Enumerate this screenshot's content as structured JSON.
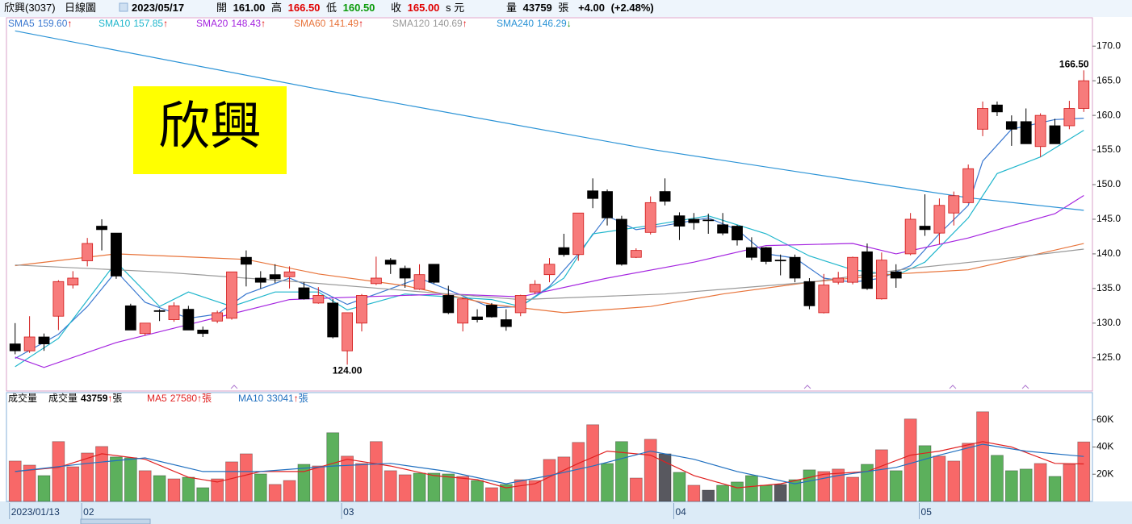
{
  "header": {
    "name": "欣興(3037)",
    "chart_kind": "日線圖",
    "date": "2023/05/17",
    "open_label": "開",
    "open": "161.00",
    "high_label": "高",
    "high": "166.50",
    "low_label": "低",
    "low": "160.50",
    "close_label": "收",
    "close": "165.00",
    "currency": "s 元",
    "volume_label": "量",
    "volume": "43759",
    "volume_unit": "張",
    "change": "+4.00",
    "change_pct": "(+2.48%)"
  },
  "chart_data": [
    {
      "type": "candlestick",
      "annotation": "欣興",
      "open": [
        127.0,
        126.0,
        128.0,
        131.0,
        135.5,
        139.0,
        144.0,
        143.0,
        132.5,
        128.5,
        131.8,
        130.5,
        132.0,
        129.0,
        130.3,
        130.7,
        139.5,
        136.5,
        137.0,
        136.7,
        135.1,
        132.9,
        132.9,
        126.0,
        130.0,
        135.7,
        139.1,
        137.9,
        134.9,
        138.5,
        134.0,
        130.0,
        130.9,
        132.6,
        130.5,
        131.5,
        134.5,
        137.0,
        140.9,
        139.9,
        149.1,
        149.0,
        145.0,
        139.5,
        143.1,
        149.0,
        145.5,
        145.0,
        144.9,
        144.2,
        144.0,
        140.9,
        140.9,
        139.1,
        139.5,
        136.0,
        131.5,
        135.9,
        135.9,
        140.3,
        133.5,
        137.4,
        140.0,
        144.0,
        143.0,
        145.9,
        147.4,
        158.0,
        161.5,
        159.1,
        159.1,
        155.5,
        158.5,
        158.5,
        161.0
      ],
      "high": [
        130.0,
        131.0,
        128.5,
        136.2,
        137.5,
        142.3,
        145.0,
        143.0,
        132.8,
        130.0,
        132.0,
        133.0,
        132.5,
        129.5,
        131.8,
        137.4,
        140.5,
        137.5,
        138.5,
        138.2,
        135.9,
        135.2,
        133.5,
        131.5,
        134.2,
        139.6,
        139.4,
        138.3,
        138.5,
        138.5,
        135.4,
        133.7,
        132.0,
        132.9,
        132.0,
        134.1,
        136.2,
        139.4,
        142.9,
        145.9,
        150.9,
        149.3,
        145.5,
        140.8,
        148.3,
        150.9,
        146.0,
        145.9,
        145.8,
        145.9,
        144.2,
        142.4,
        141.0,
        139.9,
        139.9,
        136.5,
        137.1,
        137.4,
        139.6,
        141.5,
        140.2,
        138.5,
        145.9,
        148.6,
        148.0,
        149.0,
        152.9,
        162.0,
        162.0,
        160.0,
        161.0,
        160.3,
        159.5,
        162.1,
        166.5
      ],
      "low": [
        125.5,
        125.7,
        126.0,
        129.0,
        135.0,
        138.2,
        140.5,
        136.4,
        129.0,
        128.2,
        130.3,
        130.2,
        129.0,
        128.0,
        130.0,
        130.5,
        135.3,
        135.0,
        135.8,
        135.0,
        133.4,
        132.8,
        127.8,
        124.0,
        128.8,
        135.5,
        137.1,
        135.1,
        134.8,
        135.7,
        131.3,
        128.8,
        130.1,
        130.8,
        128.9,
        131.0,
        134.2,
        135.9,
        139.6,
        139.0,
        146.6,
        144.1,
        138.3,
        139.4,
        142.8,
        147.0,
        142.0,
        143.5,
        142.9,
        142.7,
        141.2,
        139.1,
        138.5,
        136.9,
        135.9,
        132.0,
        131.4,
        135.6,
        135.6,
        134.8,
        133.4,
        135.1,
        139.8,
        142.6,
        141.4,
        144.1,
        147.3,
        157.0,
        159.9,
        155.6,
        155.9,
        154.0,
        155.9,
        158.0,
        160.5
      ],
      "close": [
        126.0,
        128.0,
        127.0,
        136.0,
        136.5,
        141.5,
        143.5,
        136.8,
        129.0,
        130.0,
        131.7,
        132.5,
        129.0,
        128.5,
        131.5,
        137.4,
        138.5,
        135.9,
        136.4,
        137.4,
        133.5,
        134.0,
        128.0,
        131.5,
        134.0,
        136.5,
        138.5,
        136.5,
        137.0,
        135.9,
        131.5,
        133.5,
        130.5,
        130.9,
        129.5,
        134.0,
        135.6,
        138.5,
        139.9,
        145.9,
        148.0,
        145.2,
        138.5,
        140.5,
        147.4,
        147.6,
        144.0,
        144.5,
        144.8,
        143.0,
        142.0,
        139.5,
        138.9,
        139.0,
        136.5,
        132.5,
        135.5,
        136.5,
        139.5,
        135.0,
        139.1,
        136.5,
        145.0,
        143.5,
        147.0,
        148.4,
        152.3,
        161.0,
        160.5,
        158.0,
        155.9,
        160.0,
        155.9,
        161.0,
        165.0
      ],
      "up_color": "#f77b7b",
      "up_border": "#d01818",
      "down_color": "#000000",
      "high_label": "166.50",
      "low_label": "124.00",
      "lines": [
        {
          "name": "SMA5",
          "color": "#3a78d0",
          "legend_value": "159.60",
          "legend_arrow": "↑",
          "arrow_color": "#e00000",
          "x": [
            0,
            3,
            5,
            7,
            9,
            12,
            14,
            16,
            19,
            21,
            23,
            25,
            28,
            30,
            33,
            35,
            37,
            39,
            41,
            43,
            45,
            48,
            50,
            52,
            54,
            56,
            58,
            60,
            62,
            64,
            66,
            67,
            69,
            72,
            74
          ],
          "values": [
            124.9,
            128.4,
            132.4,
            137.5,
            133.0,
            130.7,
            131.3,
            134.2,
            136.5,
            134.8,
            132.7,
            134.2,
            136.5,
            134.8,
            132.2,
            132.4,
            135.3,
            140.0,
            145.5,
            143.5,
            144.1,
            145.2,
            143.5,
            140.0,
            139.4,
            136.5,
            135.9,
            136.5,
            138.3,
            142.9,
            147.0,
            153.4,
            158.0,
            159.4,
            159.6
          ]
        },
        {
          "name": "SMA10",
          "color": "#1fb6cc",
          "legend_value": "157.85",
          "legend_arrow": "↑",
          "arrow_color": "#e00000",
          "x": [
            0,
            3,
            7,
            10,
            12,
            15,
            18,
            21,
            23,
            27,
            33,
            35,
            38,
            40,
            44,
            48,
            52,
            55,
            58,
            61,
            63,
            66,
            68,
            71,
            74
          ],
          "values": [
            123.7,
            127.8,
            138.8,
            132.4,
            134.5,
            132.4,
            134.5,
            134.5,
            131.9,
            134.2,
            133.4,
            132.4,
            136.5,
            142.9,
            144.1,
            145.5,
            142.9,
            139.7,
            137.7,
            136.9,
            138.8,
            145.2,
            151.6,
            154.0,
            157.85
          ]
        },
        {
          "name": "SMA20",
          "color": "#a526e0",
          "legend_value": "148.43",
          "legend_arrow": "↑",
          "arrow_color": "#e00000",
          "x": [
            0,
            2,
            7,
            13,
            19,
            24,
            30,
            35,
            41,
            47,
            52,
            58,
            61,
            66,
            72,
            74
          ],
          "values": [
            125.1,
            123.6,
            127.2,
            130.3,
            133.4,
            133.8,
            134.2,
            133.8,
            136.5,
            138.8,
            141.2,
            141.5,
            140.0,
            142.3,
            145.8,
            148.43
          ]
        },
        {
          "name": "SMA60",
          "color": "#e8743b",
          "legend_value": "141.49",
          "legend_arrow": "↑",
          "arrow_color": "#e00000",
          "x": [
            0,
            7,
            16,
            21,
            27,
            33,
            38,
            44,
            49,
            55,
            61,
            66,
            74
          ],
          "values": [
            138.3,
            140.0,
            139.2,
            137.1,
            135.4,
            132.7,
            131.5,
            132.4,
            134.2,
            135.9,
            137.1,
            137.7,
            141.49
          ]
        },
        {
          "name": "SMA120",
          "color": "#999999",
          "legend_value": "140.69",
          "legend_arrow": "↑",
          "arrow_color": "#e00000",
          "x": [
            0,
            10,
            20,
            30,
            35,
            45,
            55,
            62,
            68,
            74
          ],
          "values": [
            138.4,
            137.4,
            135.9,
            134.2,
            133.4,
            134.2,
            135.9,
            137.9,
            139.2,
            140.69
          ]
        },
        {
          "name": "SMA240",
          "color": "#2b93d6",
          "legend_value": "146.29",
          "legend_arrow": "↓",
          "arrow_color": "#108a10",
          "x": [
            0,
            21,
            44,
            55,
            66,
            74
          ],
          "values": [
            172.2,
            163.8,
            155.1,
            151.6,
            148.1,
            146.29
          ]
        }
      ],
      "xlim": [
        -0.6,
        74.6
      ],
      "ylim": [
        120.2,
        174.1
      ],
      "yticks": [
        {
          "value": 125,
          "label": "125.0"
        },
        {
          "value": 130,
          "label": "130.0"
        },
        {
          "value": 135,
          "label": "135.0"
        },
        {
          "value": 140,
          "label": "140.0"
        },
        {
          "value": 145,
          "label": "145.0"
        },
        {
          "value": 150,
          "label": "150.0"
        },
        {
          "value": 155,
          "label": "155.0"
        },
        {
          "value": 160,
          "label": "160.0"
        },
        {
          "value": 165,
          "label": "165.0"
        },
        {
          "value": 170,
          "label": "170.0"
        }
      ],
      "xticks": [
        {
          "value": 0,
          "label": "2023/01/13"
        },
        {
          "value": 5,
          "label": "02"
        },
        {
          "value": 23,
          "label": "03"
        },
        {
          "value": 46,
          "label": "04"
        },
        {
          "value": 63,
          "label": "05"
        }
      ]
    },
    {
      "type": "bar",
      "title": "成交量",
      "name": "成交量",
      "legend_value": "43759",
      "legend_arrow": "↑",
      "arrow_color": "#e00000",
      "legend_unit": "張",
      "values": [
        29700,
        26700,
        19000,
        44000,
        25500,
        35600,
        40400,
        32700,
        32100,
        22600,
        19000,
        16600,
        17800,
        10100,
        16600,
        29100,
        35000,
        20200,
        12500,
        15400,
        27300,
        26100,
        50500,
        33300,
        27900,
        44000,
        22600,
        19600,
        20800,
        20800,
        20200,
        18400,
        15400,
        10100,
        12500,
        16000,
        15400,
        30900,
        32700,
        43400,
        56400,
        27900,
        44000,
        17200,
        45700,
        35000,
        21400,
        11900,
        8300,
        11900,
        14300,
        19000,
        11900,
        12500,
        16000,
        23200,
        22000,
        23800,
        17800,
        27300,
        38000,
        22600,
        60600,
        41000,
        33300,
        29700,
        42800,
        65900,
        33900,
        22600,
        23800,
        27900,
        18400,
        27300,
        43759
      ],
      "colors": [
        "#f86868",
        "#f86868",
        "#5cb05c",
        "#f86868",
        "#f86868",
        "#f86868",
        "#f86868",
        "#5cb05c",
        "#5cb05c",
        "#f86868",
        "#5cb05c",
        "#f86868",
        "#5cb05c",
        "#5cb05c",
        "#f86868",
        "#f86868",
        "#f86868",
        "#5cb05c",
        "#f86868",
        "#f86868",
        "#5cb05c",
        "#f86868",
        "#5cb05c",
        "#f86868",
        "#f86868",
        "#f86868",
        "#f86868",
        "#f86868",
        "#5cb05c",
        "#5cb05c",
        "#5cb05c",
        "#f86868",
        "#5cb05c",
        "#f86868",
        "#5cb05c",
        "#f86868",
        "#f86868",
        "#f86868",
        "#f86868",
        "#f86868",
        "#f86868",
        "#5cb05c",
        "#5cb05c",
        "#f86868",
        "#f86868",
        "#58585f",
        "#5cb05c",
        "#f86868",
        "#58585f",
        "#5cb05c",
        "#5cb05c",
        "#5cb05c",
        "#5cb05c",
        "#58585f",
        "#5cb05c",
        "#5cb05c",
        "#f86868",
        "#f86868",
        "#f86868",
        "#5cb05c",
        "#f86868",
        "#5cb05c",
        "#f86868",
        "#5cb05c",
        "#f86868",
        "#f86868",
        "#f86868",
        "#f86868",
        "#5cb05c",
        "#5cb05c",
        "#5cb05c",
        "#f86868",
        "#5cb05c",
        "#f86868",
        "#f86868"
      ],
      "lines": [
        {
          "name": "MA5",
          "color": "#e02020",
          "legend_value": "27580",
          "legend_arrow": "↑",
          "arrow_color": "#e00000",
          "legend_unit": "張",
          "x": [
            0,
            3,
            6,
            9,
            12,
            14,
            17,
            20,
            23,
            26,
            29,
            32,
            34,
            36,
            39,
            41,
            44,
            47,
            50,
            53,
            56,
            59,
            62,
            64,
            67,
            69,
            72,
            74
          ],
          "values": [
            22000,
            25000,
            35000,
            31000,
            17800,
            14300,
            22000,
            22000,
            31000,
            26000,
            19000,
            16000,
            10000,
            13000,
            28000,
            37000,
            34000,
            19000,
            10000,
            13000,
            20000,
            22000,
            34000,
            37000,
            44000,
            40000,
            28000,
            27580
          ]
        },
        {
          "name": "MA10",
          "color": "#2070c0",
          "legend_value": "33041",
          "legend_arrow": "↑",
          "arrow_color": "#e00000",
          "legend_unit": "張",
          "x": [
            0,
            5,
            9,
            13,
            17,
            22,
            26,
            30,
            34,
            37,
            40,
            44,
            47,
            50,
            54,
            57,
            61,
            64,
            67,
            70,
            74
          ],
          "values": [
            22000,
            28000,
            32000,
            22000,
            22000,
            26000,
            28000,
            22000,
            13000,
            19000,
            26000,
            37000,
            31000,
            22000,
            13000,
            19000,
            25000,
            34000,
            42000,
            37000,
            33041
          ]
        }
      ],
      "xlim": [
        -0.6,
        74.6
      ],
      "ylim": [
        0,
        80000
      ],
      "yticks": [
        {
          "value": 20000,
          "label": "20K"
        },
        {
          "value": 40000,
          "label": "40K"
        },
        {
          "value": 60000,
          "label": "60K"
        }
      ]
    }
  ]
}
